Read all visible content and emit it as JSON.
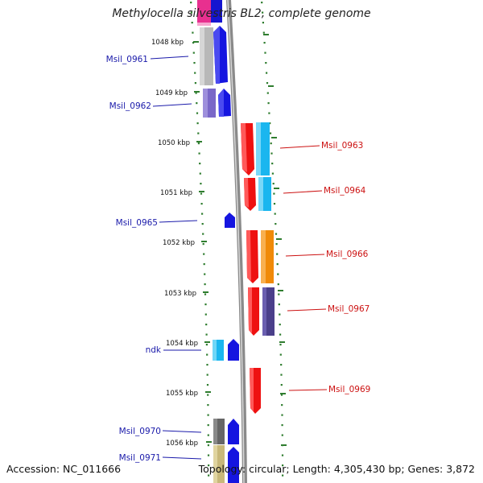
{
  "title": "Methylocella silvestris BL2, complete genome",
  "footer": {
    "accession": "Accession: NC_011666",
    "topology": "Topology: circular; Length: 4,305,430 bp; Genes: 3,872"
  },
  "colors": {
    "left_label": "#1a1aaa",
    "right_label": "#cc1111",
    "backbone": "#8a8a8a",
    "tick": "#2f7d2f"
  },
  "kbp_labels": [
    "1048 kbp",
    "1049 kbp",
    "1050 kbp",
    "1051 kbp",
    "1052 kbp",
    "1053 kbp",
    "1054 kbp",
    "1055 kbp",
    "1056 kbp"
  ],
  "genes_left": [
    {
      "label": "Msil_0961",
      "color": "#1a1aaa"
    },
    {
      "label": "Msil_0962",
      "color": "#1a1aaa"
    },
    {
      "label": "Msil_0965",
      "color": "#1a1aaa"
    },
    {
      "label": "ndk",
      "color": "#1a1aaa"
    },
    {
      "label": "Msil_0970",
      "color": "#1a1aaa"
    },
    {
      "label": "Msil_0971",
      "color": "#1a1aaa"
    }
  ],
  "genes_right": [
    {
      "label": "Msil_0963",
      "color": "#cc1111"
    },
    {
      "label": "Msil_0964",
      "color": "#cc1111"
    },
    {
      "label": "Msil_0966",
      "color": "#cc1111"
    },
    {
      "label": "Msil_0967",
      "color": "#cc1111"
    },
    {
      "label": "Msil_0969",
      "color": "#cc1111"
    }
  ]
}
